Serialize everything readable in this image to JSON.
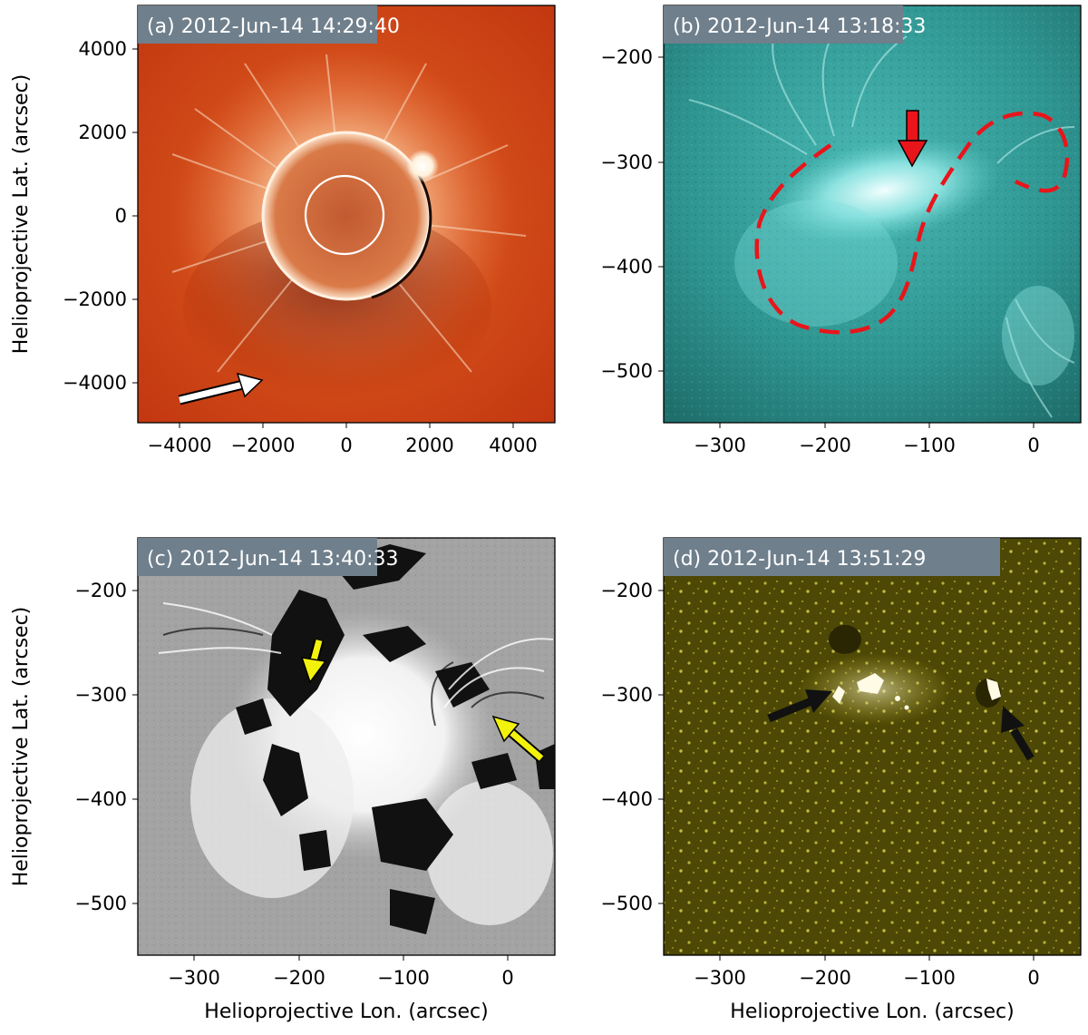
{
  "panels": [
    {
      "id": "a",
      "label": "(a) 2012-Jun-14 14:29:40",
      "xticks": [
        "−4000",
        "−2000",
        "0",
        "2000",
        "4000"
      ],
      "yticks": [
        "4000",
        "2000",
        "0",
        "−2000",
        "−4000"
      ],
      "xlim": [
        -5000,
        5000
      ],
      "ylim": [
        -5000,
        5000
      ],
      "arrow_color": "#ffffff",
      "background_color": "#c83a10"
    },
    {
      "id": "b",
      "label": "(b) 2012-Jun-14 13:18:33",
      "xticks": [
        "−300",
        "−200",
        "−100",
        "0"
      ],
      "yticks": [
        "−200",
        "−300",
        "−400",
        "−500"
      ],
      "xlim": [
        -360,
        40
      ],
      "ylim": [
        -550,
        -150
      ],
      "arrow_color": "#e8151b",
      "outline_color": "#e8151b",
      "background_color": "#2a8f8c"
    },
    {
      "id": "c",
      "label": "(c) 2012-Jun-14 13:40:33",
      "xticks": [
        "−300",
        "−200",
        "−100",
        "0"
      ],
      "yticks": [
        "−200",
        "−300",
        "−400",
        "−500"
      ],
      "xlim": [
        -360,
        40
      ],
      "ylim": [
        -550,
        -150
      ],
      "arrow_color": "#f2f20d",
      "background_color": "#9a9a9a"
    },
    {
      "id": "d",
      "label": "(d) 2012-Jun-14 13:51:29",
      "xticks": [
        "−300",
        "−200",
        "−100",
        "0"
      ],
      "yticks": [
        "−200",
        "−300",
        "−400",
        "−500"
      ],
      "xlim": [
        -360,
        40
      ],
      "ylim": [
        -550,
        -150
      ],
      "arrow_color": "#111111",
      "background_color": "#4f4a06"
    }
  ],
  "axes": {
    "ylabel": "Helioprojective Lat. (arcsec)",
    "xlabel": "Helioprojective Lon. (arcsec)"
  }
}
